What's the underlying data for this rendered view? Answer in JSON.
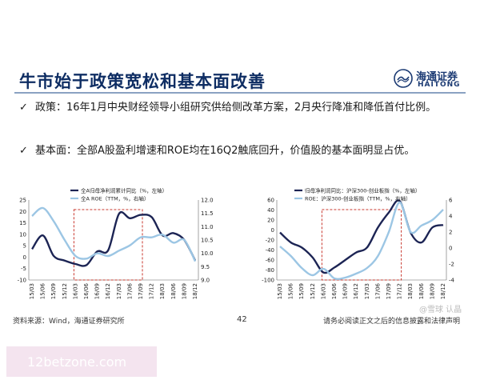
{
  "slide": {
    "title": "牛市始于政策宽松和基本面改善",
    "page_number": "42"
  },
  "logo": {
    "name_cn": "海通证券",
    "name_en": "HAITONG"
  },
  "bullets": [
    "政策：16年1月中央财经领导小组研究供给侧改革方案，2月央行降准和降低首付比例。",
    "基本面：全部A股盈利增速和ROE均在16Q2触底回升，价值股的基本面明显占优。"
  ],
  "footer": {
    "source": "资料来源：Wind，海通证券研究所",
    "disclaimer": "请务必阅读正文之后的信息披露和法律声明"
  },
  "watermark": {
    "site": "12betzone.com",
    "tag": "@雪球 认晶"
  },
  "colors": {
    "series_dark": "#1c2454",
    "series_light": "#9cc6e4",
    "highlight_box": "#c8372d",
    "title": "#0e2d63"
  },
  "chart_data": [
    {
      "type": "line",
      "x": [
        "15/03",
        "15/06",
        "15/09",
        "15/12",
        "16/03",
        "16/06",
        "16/09",
        "16/12",
        "17/03",
        "17/06",
        "17/09",
        "17/12",
        "18/03",
        "18/06",
        "18/09",
        "18/12"
      ],
      "series": [
        {
          "name": "全A归母净利润累计同比（%，左轴）",
          "axis": "left",
          "values": [
            3.5,
            9.5,
            0.5,
            -1.5,
            -3.0,
            -3.5,
            2.5,
            3.0,
            19.0,
            17.0,
            18.5,
            17.5,
            9.5,
            10.5,
            7.5,
            -1.5
          ]
        },
        {
          "name": "全A ROE（TTM，%，右轴）",
          "axis": "right",
          "values": [
            11.4,
            11.7,
            11.2,
            10.5,
            9.9,
            9.8,
            10.0,
            9.9,
            10.1,
            10.3,
            10.6,
            10.6,
            10.7,
            10.4,
            10.5,
            9.7
          ]
        }
      ],
      "ylim_left": [
        -10,
        25
      ],
      "ylim_right": [
        9.0,
        12.0
      ],
      "yticks_left": [
        "-10",
        "-5",
        "0",
        "5",
        "10",
        "15",
        "20",
        "25"
      ],
      "yticks_right": [
        "9.0",
        "9.5",
        "10.0",
        "10.5",
        "11.0",
        "11.5",
        "12.0"
      ],
      "highlight_range": [
        "16/03",
        "17/09"
      ],
      "legend": "top"
    },
    {
      "type": "line",
      "x": [
        "15/03",
        "15/06",
        "15/09",
        "15/12",
        "16/03",
        "16/06",
        "16/09",
        "16/12",
        "17/03",
        "17/06",
        "17/09",
        "17/12",
        "18/03",
        "18/06",
        "18/09",
        "18/12"
      ],
      "series": [
        {
          "name": "归母净利润同比：沪深300-创业板指（%，左轴）",
          "axis": "left",
          "values": [
            -5,
            -25,
            -35,
            -55,
            -85,
            -75,
            -60,
            -45,
            -35,
            5,
            35,
            58,
            -5,
            -25,
            5,
            10
          ]
        },
        {
          "name": "ROE：沪深300-创业板指（TTM，%，右轴）",
          "axis": "right",
          "values": [
            0.2,
            -1.0,
            -2.5,
            -3.4,
            -2.6,
            -3.8,
            -3.7,
            -3.2,
            -2.5,
            -1.0,
            2.0,
            5.7,
            2.0,
            2.8,
            3.5,
            4.8
          ]
        }
      ],
      "ylim_left": [
        -100,
        60
      ],
      "ylim_right": [
        -4,
        6
      ],
      "yticks_left": [
        "-100",
        "-80",
        "-60",
        "-40",
        "-20",
        "0",
        "20",
        "40",
        "60"
      ],
      "yticks_right": [
        "-4",
        "-2",
        "0",
        "2",
        "4",
        "6"
      ],
      "highlight_range": [
        "16/03",
        "17/12"
      ],
      "legend": "top"
    }
  ]
}
